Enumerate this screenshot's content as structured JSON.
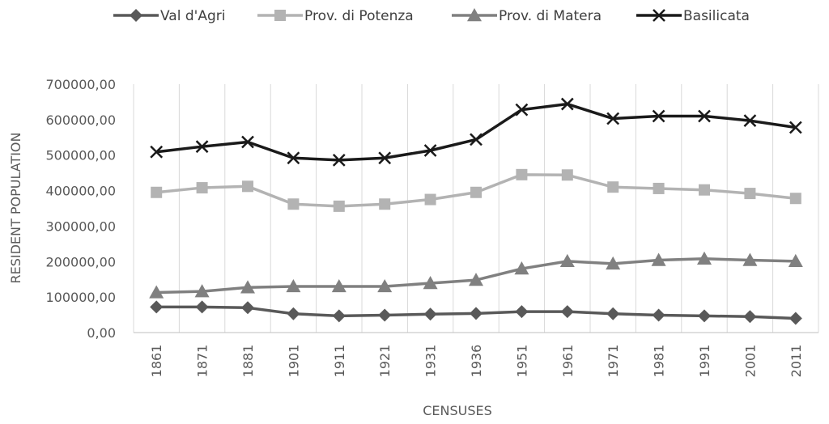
{
  "chart_data": {
    "type": "line",
    "title": "",
    "xlabel": "CENSUSES",
    "ylabel": "RESIDENT POPULATION",
    "categories": [
      "1861",
      "1871",
      "1881",
      "1901",
      "1911",
      "1921",
      "1931",
      "1936",
      "1951",
      "1961",
      "1971",
      "1981",
      "1991",
      "2001",
      "2011"
    ],
    "ylim": [
      0,
      700000
    ],
    "y_ticks": [
      "0,00",
      "100000,00",
      "200000,00",
      "300000,00",
      "400000,00",
      "500000,00",
      "600000,00",
      "700000,00"
    ],
    "grid": "vertical",
    "legend_position": "top",
    "series": [
      {
        "name": "Val d'Agri",
        "marker": "diamond",
        "color": "#595959",
        "values": [
          72000,
          72000,
          70000,
          53000,
          47000,
          49000,
          52000,
          54000,
          59000,
          59000,
          53000,
          49000,
          47000,
          45000,
          40000
        ]
      },
      {
        "name": "Prov. di Potenza",
        "marker": "square",
        "color": "#b3b3b3",
        "values": [
          395000,
          408000,
          412000,
          362000,
          356000,
          362000,
          375000,
          395000,
          445000,
          444000,
          410000,
          406000,
          402000,
          392000,
          378000
        ]
      },
      {
        "name": "Prov. di Matera",
        "marker": "triangle",
        "color": "#808080",
        "values": [
          113000,
          116000,
          127000,
          130000,
          130000,
          130000,
          139000,
          148000,
          180000,
          201000,
          194000,
          204000,
          208000,
          204000,
          201000
        ]
      },
      {
        "name": "Basilicata",
        "marker": "x",
        "color": "#1a1a1a",
        "values": [
          509000,
          524000,
          537000,
          492000,
          486000,
          492000,
          513000,
          544000,
          628000,
          644000,
          603000,
          610000,
          610000,
          597000,
          578000
        ]
      }
    ]
  }
}
